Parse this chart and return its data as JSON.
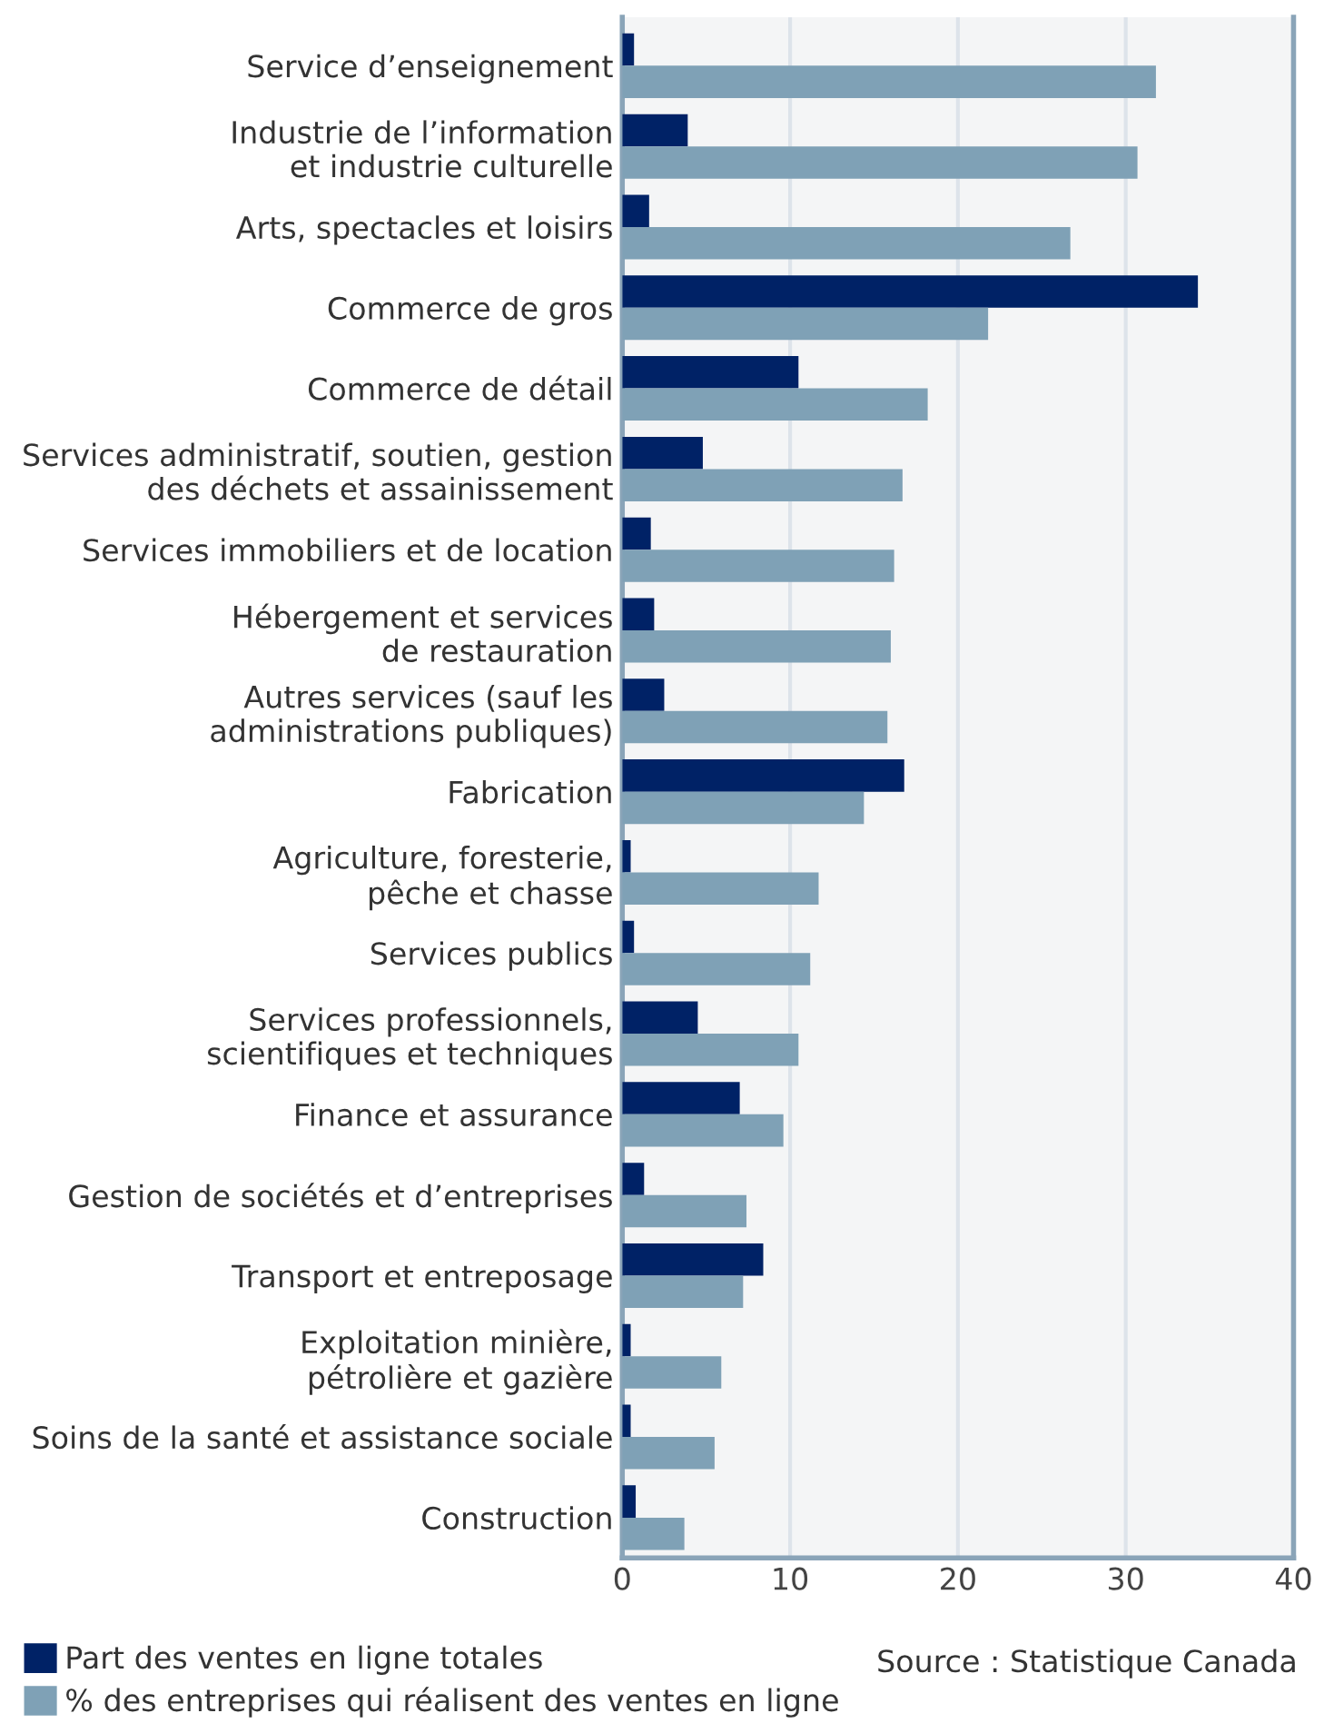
{
  "chart_data": {
    "type": "bar",
    "orientation": "horizontal",
    "categories": [
      "Service d’enseignement",
      "Industrie de l’information\net industrie culturelle",
      "Arts, spectacles et loisirs",
      "Commerce de gros",
      "Commerce de détail",
      "Services administratif, soutien, gestion\ndes déchets et assainissement",
      "Services immobiliers et de location",
      "Hébergement et services\nde restauration",
      "Autres services (sauf les\nadministrations publiques)",
      "Fabrication",
      "Agriculture, foresterie,\npêche et chasse",
      "Services publics",
      "Services professionnels,\nscientifiques et techniques",
      "Finance et assurance",
      "Gestion de sociétés et d’entreprises",
      "Transport et entreposage",
      "Exploitation minière,\npétrolière et gazière",
      "Soins de la santé et assistance sociale",
      "Construction"
    ],
    "series": [
      {
        "name": "Part des ventes en ligne totales",
        "color": "#002266",
        "values": [
          0.7,
          3.9,
          1.6,
          34.3,
          10.5,
          4.8,
          1.7,
          1.9,
          2.5,
          16.8,
          0.5,
          0.7,
          4.5,
          7.0,
          1.3,
          8.4,
          0.5,
          0.5,
          0.8
        ]
      },
      {
        "name": "% des entreprises qui réalisent des ventes en ligne",
        "color": "#7fa1b6",
        "values": [
          31.8,
          30.7,
          26.7,
          21.8,
          18.2,
          16.7,
          16.2,
          16.0,
          15.8,
          14.4,
          11.7,
          11.2,
          10.5,
          9.6,
          7.4,
          7.2,
          5.9,
          5.5,
          3.7
        ]
      }
    ],
    "xlim": [
      0,
      40
    ],
    "xticks": [
      0,
      10,
      20,
      30,
      40
    ],
    "grid": "x",
    "legend": "bottom left",
    "annotations": [
      "Source : Statistique Canada"
    ]
  }
}
